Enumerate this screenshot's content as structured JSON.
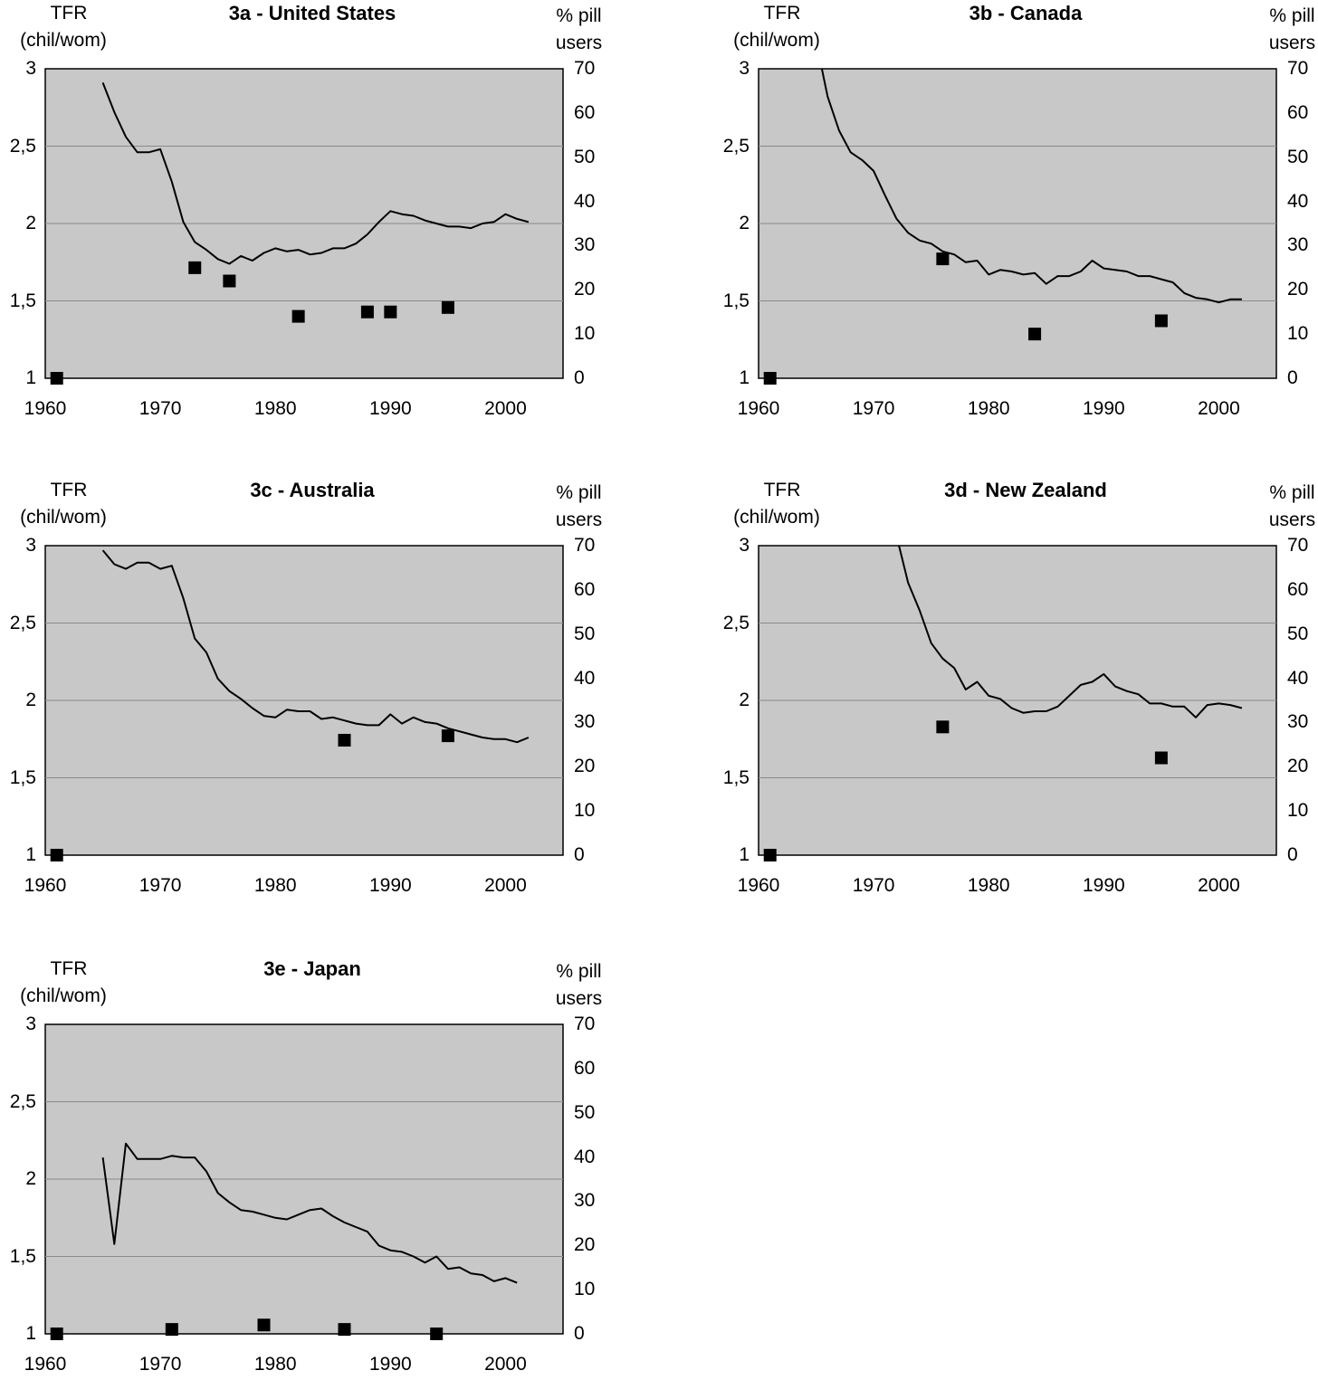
{
  "figure": {
    "left_axis_label": [
      "TFR",
      "(chil/wom)"
    ],
    "right_axis_label": [
      "% pill",
      "users"
    ]
  },
  "chart_data": [
    {
      "type": "line",
      "title": "3a - United States",
      "xlim": [
        1960,
        2005
      ],
      "xticks": [
        "1960",
        "1970",
        "1980",
        "1990",
        "2000"
      ],
      "ylim": [
        1,
        3
      ],
      "yticks": [
        "1",
        "1,5",
        "2",
        "2,5",
        "3"
      ],
      "y2lim": [
        0,
        70
      ],
      "y2ticks": [
        "0",
        "10",
        "20",
        "30",
        "40",
        "50",
        "60",
        "70"
      ],
      "grid": true,
      "background": "#c8c8c8",
      "series": [
        {
          "axis": "left",
          "style": "line",
          "x": [
            1965,
            1966,
            1967,
            1968,
            1969,
            1970,
            1971,
            1972,
            1973,
            1974,
            1975,
            1976,
            1977,
            1978,
            1979,
            1980,
            1981,
            1982,
            1983,
            1984,
            1985,
            1986,
            1987,
            1988,
            1989,
            1990,
            1991,
            1992,
            1993,
            1994,
            1995,
            1996,
            1997,
            1998,
            1999,
            2000,
            2001,
            2002
          ],
          "y": [
            2.91,
            2.72,
            2.56,
            2.46,
            2.46,
            2.48,
            2.27,
            2.01,
            1.88,
            1.83,
            1.77,
            1.74,
            1.79,
            1.76,
            1.81,
            1.84,
            1.82,
            1.83,
            1.8,
            1.81,
            1.84,
            1.84,
            1.87,
            1.93,
            2.01,
            2.08,
            2.06,
            2.05,
            2.02,
            2.0,
            1.98,
            1.98,
            1.97,
            2.0,
            2.01,
            2.06,
            2.03,
            2.01
          ]
        },
        {
          "axis": "right",
          "style": "markers",
          "x": [
            1961,
            1973,
            1976,
            1982,
            1988,
            1990,
            1995
          ],
          "y": [
            0,
            25,
            22,
            14,
            15,
            15,
            16
          ]
        }
      ]
    },
    {
      "type": "line",
      "title": "3b - Canada",
      "xlim": [
        1960,
        2005
      ],
      "xticks": [
        "1960",
        "1970",
        "1980",
        "1990",
        "2000"
      ],
      "ylim": [
        1,
        3
      ],
      "yticks": [
        "1",
        "1,5",
        "2",
        "2,5",
        "3"
      ],
      "y2lim": [
        0,
        70
      ],
      "y2ticks": [
        "0",
        "10",
        "20",
        "30",
        "40",
        "50",
        "60",
        "70"
      ],
      "grid": true,
      "background": "#c8c8c8",
      "series": [
        {
          "axis": "left",
          "style": "line",
          "x": [
            1965.5,
            1966,
            1967,
            1968,
            1969,
            1970,
            1971,
            1972,
            1973,
            1974,
            1975,
            1976,
            1977,
            1978,
            1979,
            1980,
            1981,
            1982,
            1983,
            1984,
            1985,
            1986,
            1987,
            1988,
            1989,
            1990,
            1991,
            1992,
            1993,
            1994,
            1995,
            1996,
            1997,
            1998,
            1999,
            2000,
            2001,
            2002
          ],
          "y": [
            3.0,
            2.82,
            2.6,
            2.46,
            2.41,
            2.34,
            2.18,
            2.03,
            1.94,
            1.89,
            1.87,
            1.82,
            1.8,
            1.75,
            1.76,
            1.67,
            1.7,
            1.69,
            1.67,
            1.68,
            1.61,
            1.66,
            1.66,
            1.69,
            1.76,
            1.71,
            1.7,
            1.69,
            1.66,
            1.66,
            1.64,
            1.62,
            1.55,
            1.52,
            1.51,
            1.49,
            1.51,
            1.51
          ]
        },
        {
          "axis": "right",
          "style": "markers",
          "x": [
            1961,
            1976,
            1984,
            1995
          ],
          "y": [
            0,
            27,
            10,
            13
          ]
        }
      ]
    },
    {
      "type": "line",
      "title": "3c - Australia",
      "xlim": [
        1960,
        2005
      ],
      "xticks": [
        "1960",
        "1970",
        "1980",
        "1990",
        "2000"
      ],
      "ylim": [
        1,
        3
      ],
      "yticks": [
        "1",
        "1,5",
        "2",
        "2,5",
        "3"
      ],
      "y2lim": [
        0,
        70
      ],
      "y2ticks": [
        "0",
        "10",
        "20",
        "30",
        "40",
        "50",
        "60",
        "70"
      ],
      "grid": true,
      "background": "#c8c8c8",
      "series": [
        {
          "axis": "left",
          "style": "line",
          "x": [
            1965,
            1966,
            1967,
            1968,
            1969,
            1970,
            1971,
            1972,
            1973,
            1974,
            1975,
            1976,
            1977,
            1978,
            1979,
            1980,
            1981,
            1982,
            1983,
            1984,
            1985,
            1986,
            1987,
            1988,
            1989,
            1990,
            1991,
            1992,
            1993,
            1994,
            1995,
            1996,
            1997,
            1998,
            1999,
            2000,
            2001,
            2002
          ],
          "y": [
            2.97,
            2.88,
            2.85,
            2.89,
            2.89,
            2.85,
            2.87,
            2.66,
            2.4,
            2.31,
            2.14,
            2.06,
            2.01,
            1.95,
            1.9,
            1.89,
            1.94,
            1.93,
            1.93,
            1.88,
            1.89,
            1.87,
            1.85,
            1.84,
            1.84,
            1.91,
            1.85,
            1.89,
            1.86,
            1.85,
            1.82,
            1.8,
            1.78,
            1.76,
            1.75,
            1.75,
            1.73,
            1.76
          ]
        },
        {
          "axis": "right",
          "style": "markers",
          "x": [
            1961,
            1986,
            1995
          ],
          "y": [
            0,
            26,
            27
          ]
        }
      ]
    },
    {
      "type": "line",
      "title": "3d - New Zealand",
      "xlim": [
        1960,
        2005
      ],
      "xticks": [
        "1960",
        "1970",
        "1980",
        "1990",
        "2000"
      ],
      "ylim": [
        1,
        3
      ],
      "yticks": [
        "1",
        "1,5",
        "2",
        "2,5",
        "3"
      ],
      "y2lim": [
        0,
        70
      ],
      "y2ticks": [
        "0",
        "10",
        "20",
        "30",
        "40",
        "50",
        "60",
        "70"
      ],
      "grid": true,
      "background": "#c8c8c8",
      "series": [
        {
          "axis": "left",
          "style": "line",
          "x": [
            1972.2,
            1973,
            1974,
            1975,
            1976,
            1977,
            1978,
            1979,
            1980,
            1981,
            1982,
            1983,
            1984,
            1985,
            1986,
            1987,
            1988,
            1989,
            1990,
            1991,
            1992,
            1993,
            1994,
            1995,
            1996,
            1997,
            1998,
            1999,
            2000,
            2001,
            2002
          ],
          "y": [
            3.0,
            2.76,
            2.58,
            2.37,
            2.27,
            2.21,
            2.07,
            2.12,
            2.03,
            2.01,
            1.95,
            1.92,
            1.93,
            1.93,
            1.96,
            2.03,
            2.1,
            2.12,
            2.17,
            2.09,
            2.06,
            2.04,
            1.98,
            1.98,
            1.96,
            1.96,
            1.89,
            1.97,
            1.98,
            1.97,
            1.95
          ]
        },
        {
          "axis": "right",
          "style": "markers",
          "x": [
            1961,
            1976,
            1995
          ],
          "y": [
            0,
            29,
            22
          ]
        }
      ]
    },
    {
      "type": "line",
      "title": "3e - Japan",
      "xlim": [
        1960,
        2005
      ],
      "xticks": [
        "1960",
        "1970",
        "1980",
        "1990",
        "2000"
      ],
      "ylim": [
        1,
        3
      ],
      "yticks": [
        "1",
        "1,5",
        "2",
        "2,5",
        "3"
      ],
      "y2lim": [
        0,
        70
      ],
      "y2ticks": [
        "0",
        "10",
        "20",
        "30",
        "40",
        "50",
        "60",
        "70"
      ],
      "grid": true,
      "background": "#c8c8c8",
      "series": [
        {
          "axis": "left",
          "style": "line",
          "x": [
            1965,
            1966,
            1967,
            1968,
            1969,
            1970,
            1971,
            1972,
            1973,
            1974,
            1975,
            1976,
            1977,
            1978,
            1979,
            1980,
            1981,
            1982,
            1983,
            1984,
            1985,
            1986,
            1987,
            1988,
            1989,
            1990,
            1991,
            1992,
            1993,
            1994,
            1995,
            1996,
            1997,
            1998,
            1999,
            2000,
            2001
          ],
          "y": [
            2.14,
            1.58,
            2.23,
            2.13,
            2.13,
            2.13,
            2.15,
            2.14,
            2.14,
            2.05,
            1.91,
            1.85,
            1.8,
            1.79,
            1.77,
            1.75,
            1.74,
            1.77,
            1.8,
            1.81,
            1.76,
            1.72,
            1.69,
            1.66,
            1.57,
            1.54,
            1.53,
            1.5,
            1.46,
            1.5,
            1.42,
            1.43,
            1.39,
            1.38,
            1.34,
            1.36,
            1.33
          ]
        },
        {
          "axis": "right",
          "style": "markers",
          "x": [
            1961,
            1971,
            1979,
            1986,
            1994
          ],
          "y": [
            0,
            1,
            2,
            1,
            0
          ]
        }
      ]
    }
  ]
}
